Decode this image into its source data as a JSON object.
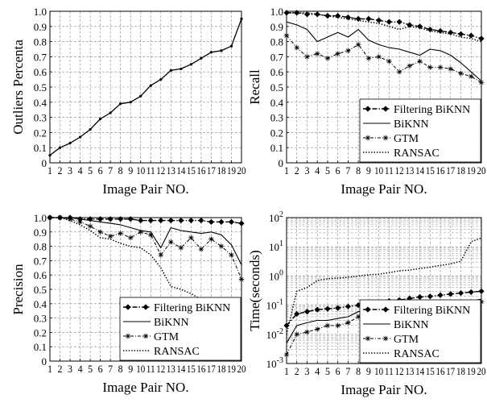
{
  "chart_data": [
    {
      "type": "line",
      "xlabel": "Image Pair NO.",
      "ylabel": "Outliers Percenta",
      "scale": "linear",
      "ylim": [
        0,
        1
      ],
      "grid": true,
      "x": [
        1,
        2,
        3,
        4,
        5,
        6,
        7,
        8,
        9,
        10,
        11,
        12,
        13,
        14,
        15,
        16,
        17,
        18,
        19,
        20
      ],
      "xticks": [
        "1",
        "2",
        "3",
        "4",
        "5",
        "6",
        "7",
        "8",
        "9",
        "10",
        "11",
        "12",
        "13",
        "14",
        "15",
        "16",
        "17",
        "18",
        "19",
        "20"
      ],
      "yticks": [
        "0",
        "0.1",
        "0.2",
        "0.3",
        "0.4",
        "0.5",
        "0.6",
        "0.7",
        "0.8",
        "0.9",
        "1.0"
      ],
      "series": [
        {
          "name": "",
          "style": "solid-dots",
          "values": [
            0.05,
            0.1,
            0.13,
            0.17,
            0.22,
            0.29,
            0.33,
            0.39,
            0.4,
            0.44,
            0.51,
            0.55,
            0.61,
            0.62,
            0.65,
            0.69,
            0.73,
            0.74,
            0.77,
            0.95
          ]
        }
      ]
    },
    {
      "type": "line",
      "xlabel": "Image Pair NO.",
      "ylabel": "Recall",
      "scale": "linear",
      "ylim": [
        0,
        1
      ],
      "grid": true,
      "x": [
        1,
        2,
        3,
        4,
        5,
        6,
        7,
        8,
        9,
        10,
        11,
        12,
        13,
        14,
        15,
        16,
        17,
        18,
        19,
        20
      ],
      "xticks": [
        "1",
        "2",
        "3",
        "4",
        "5",
        "6",
        "7",
        "8",
        "9",
        "10",
        "11",
        "12",
        "13",
        "14",
        "15",
        "16",
        "17",
        "18",
        "19",
        "20"
      ],
      "yticks": [
        "0",
        "0.1",
        "0.2",
        "0.3",
        "0.4",
        "0.5",
        "0.6",
        "0.7",
        "0.8",
        "0.9",
        "1.0"
      ],
      "legend_position": "bottom-right",
      "series": [
        {
          "name": "Filtering BiKNN",
          "style": "dashdot-diamond",
          "values": [
            0.99,
            0.99,
            0.98,
            0.98,
            0.97,
            0.97,
            0.96,
            0.95,
            0.95,
            0.94,
            0.93,
            0.93,
            0.91,
            0.9,
            0.88,
            0.87,
            0.86,
            0.85,
            0.84,
            0.82
          ]
        },
        {
          "name": "BiKNN",
          "style": "solid",
          "values": [
            0.93,
            0.91,
            0.88,
            0.8,
            0.83,
            0.86,
            0.83,
            0.88,
            0.81,
            0.78,
            0.76,
            0.75,
            0.73,
            0.71,
            0.75,
            0.74,
            0.71,
            0.66,
            0.6,
            0.54
          ]
        },
        {
          "name": "GTM",
          "style": "dashdot-star",
          "values": [
            0.84,
            0.76,
            0.7,
            0.72,
            0.69,
            0.72,
            0.74,
            0.78,
            0.69,
            0.7,
            0.67,
            0.6,
            0.64,
            0.67,
            0.63,
            0.63,
            0.62,
            0.59,
            0.57,
            0.53
          ]
        },
        {
          "name": "RANSAC",
          "style": "dotted",
          "values": [
            0.99,
            0.99,
            0.99,
            0.98,
            0.97,
            0.96,
            0.95,
            0.94,
            0.93,
            0.92,
            0.9,
            0.88,
            0.9,
            0.89,
            0.87,
            0.86,
            0.85,
            0.83,
            0.82,
            0.8
          ]
        }
      ]
    },
    {
      "type": "line",
      "xlabel": "Image Pair NO.",
      "ylabel": "Precision",
      "scale": "linear",
      "ylim": [
        0,
        1
      ],
      "grid": true,
      "x": [
        1,
        2,
        3,
        4,
        5,
        6,
        7,
        8,
        9,
        10,
        11,
        12,
        13,
        14,
        15,
        16,
        17,
        18,
        19,
        20
      ],
      "xticks": [
        "1",
        "2",
        "3",
        "4",
        "5",
        "6",
        "7",
        "8",
        "9",
        "10",
        "11",
        "12",
        "13",
        "14",
        "15",
        "16",
        "17",
        "18",
        "19",
        "20"
      ],
      "yticks": [
        "0",
        "0.1",
        "0.2",
        "0.3",
        "0.4",
        "0.5",
        "0.6",
        "0.7",
        "0.8",
        "0.9",
        "1.0"
      ],
      "legend_position": "bottom-right",
      "series": [
        {
          "name": "Filtering BiKNN",
          "style": "dashdot-diamond",
          "values": [
            1.0,
            1.0,
            1.0,
            0.99,
            0.99,
            0.99,
            0.99,
            0.99,
            0.99,
            0.98,
            0.98,
            0.98,
            0.98,
            0.98,
            0.98,
            0.98,
            0.97,
            0.97,
            0.97,
            0.96
          ]
        },
        {
          "name": "BiKNN",
          "style": "solid",
          "values": [
            1.0,
            1.0,
            1.0,
            0.99,
            0.98,
            0.97,
            0.96,
            0.95,
            0.93,
            0.91,
            0.9,
            0.79,
            0.93,
            0.91,
            0.9,
            0.89,
            0.9,
            0.88,
            0.81,
            0.67
          ]
        },
        {
          "name": "GTM",
          "style": "dashdot-star",
          "values": [
            1.0,
            1.0,
            0.99,
            0.97,
            0.94,
            0.9,
            0.87,
            0.89,
            0.86,
            0.9,
            0.88,
            0.74,
            0.83,
            0.79,
            0.86,
            0.78,
            0.85,
            0.8,
            0.74,
            0.57
          ]
        },
        {
          "name": "RANSAC",
          "style": "dotted",
          "values": [
            1.0,
            1.0,
            0.98,
            0.95,
            0.91,
            0.86,
            0.85,
            0.82,
            0.8,
            0.79,
            0.74,
            0.65,
            0.52,
            0.5,
            0.47,
            0.43,
            0.41,
            0.39,
            0.38,
            0.36
          ]
        }
      ]
    },
    {
      "type": "line",
      "xlabel": "Image Pair NO.",
      "ylabel": "Time(seconds)",
      "scale": "log",
      "ylim": [
        0.001,
        100
      ],
      "grid": true,
      "x": [
        1,
        2,
        3,
        4,
        5,
        6,
        7,
        8,
        9,
        10,
        11,
        12,
        13,
        14,
        15,
        16,
        17,
        18,
        19,
        20
      ],
      "xticks": [
        "1",
        "2",
        "3",
        "4",
        "5",
        "6",
        "7",
        "8",
        "9",
        "10",
        "11",
        "12",
        "13",
        "14",
        "15",
        "16",
        "17",
        "18",
        "19",
        "20"
      ],
      "log_ticks": [
        {
          "base": "10",
          "exp": "-3"
        },
        {
          "base": "10",
          "exp": "-2"
        },
        {
          "base": "10",
          "exp": "-1"
        },
        {
          "base": "10",
          "exp": "0"
        },
        {
          "base": "10",
          "exp": "1"
        },
        {
          "base": "10",
          "exp": "2"
        }
      ],
      "legend_position": "bottom-right",
      "series": [
        {
          "name": "Filtering BiKNN",
          "style": "dashdot-diamond",
          "values": [
            0.02,
            0.05,
            0.06,
            0.07,
            0.075,
            0.08,
            0.09,
            0.1,
            0.11,
            0.12,
            0.14,
            0.15,
            0.17,
            0.19,
            0.2,
            0.22,
            0.24,
            0.26,
            0.28,
            0.3
          ]
        },
        {
          "name": "BiKNN",
          "style": "solid",
          "values": [
            0.005,
            0.02,
            0.025,
            0.03,
            0.03,
            0.035,
            0.04,
            0.06,
            0.065,
            0.07,
            0.08,
            0.085,
            0.09,
            0.1,
            0.1,
            0.11,
            0.12,
            0.13,
            0.14,
            0.16
          ]
        },
        {
          "name": "GTM",
          "style": "dashdot-star",
          "values": [
            0.002,
            0.01,
            0.012,
            0.015,
            0.02,
            0.02,
            0.025,
            0.04,
            0.045,
            0.05,
            0.06,
            0.065,
            0.07,
            0.075,
            0.08,
            0.09,
            0.1,
            0.11,
            0.12,
            0.13
          ]
        },
        {
          "name": "RANSAC",
          "style": "dotted",
          "values": [
            0.01,
            0.3,
            0.4,
            0.7,
            0.8,
            0.85,
            0.9,
            1.0,
            1.1,
            1.15,
            1.3,
            1.5,
            1.6,
            1.8,
            2.0,
            2.3,
            2.6,
            3.2,
            15,
            20
          ]
        }
      ]
    }
  ]
}
